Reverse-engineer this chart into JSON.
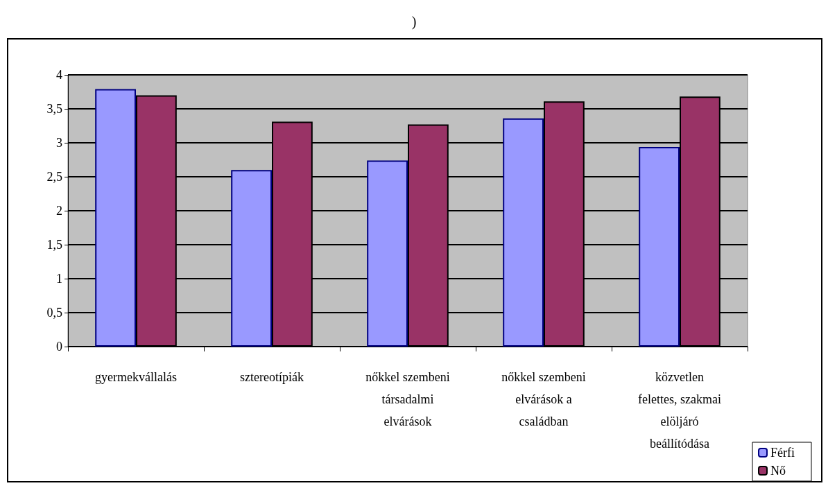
{
  "chart_data": {
    "type": "bar",
    "title": ")",
    "categories": [
      "gyermekvállalás",
      "sztereotípiák",
      "nőkkel szembeni társadalmi elvárások",
      "nőkkel szembeni elvárások a családban",
      "közvetlen felettes, szakmai elöljáró beállítódása"
    ],
    "series": [
      {
        "name": "Férfi",
        "color": "#9999ff",
        "values": [
          3.79,
          2.6,
          2.74,
          3.36,
          2.94
        ]
      },
      {
        "name": "Nő",
        "color": "#993366",
        "values": [
          3.7,
          3.31,
          3.27,
          3.61,
          3.68
        ]
      }
    ],
    "ylim": [
      0,
      4
    ],
    "yticks": [
      0,
      {
        "value": 0.5,
        "label": "0,5"
      },
      1,
      {
        "value": 1.5,
        "label": "1,5"
      },
      2,
      {
        "value": 2.5,
        "label": "2,5"
      },
      3,
      {
        "value": 3.5,
        "label": "3,5"
      },
      4
    ],
    "grid": "y",
    "legend": "bottom right"
  }
}
